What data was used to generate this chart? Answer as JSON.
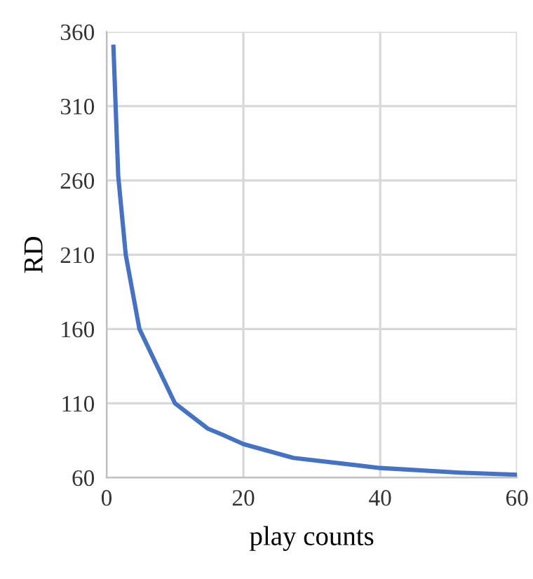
{
  "chart_data": {
    "type": "line",
    "xlabel": "play counts",
    "ylabel": "RD",
    "x": [
      1,
      1.7,
      2.8,
      4.8,
      10,
      14.8,
      16.9,
      20,
      27.3,
      40,
      51.6,
      60
    ],
    "series": [
      {
        "color": "#4472c4",
        "values": [
          350,
          263,
          210,
          160,
          110,
          93,
          89,
          82.6,
          73.3,
          66.5,
          63.4,
          62
        ]
      }
    ],
    "xlim": [
      0,
      60
    ],
    "xticks": [
      0,
      20,
      40,
      60
    ],
    "ylim": [
      60,
      360
    ],
    "yticks": [
      60,
      110,
      160,
      210,
      260,
      310,
      360
    ],
    "grid": true,
    "marker": "none",
    "line_style": "solid"
  }
}
